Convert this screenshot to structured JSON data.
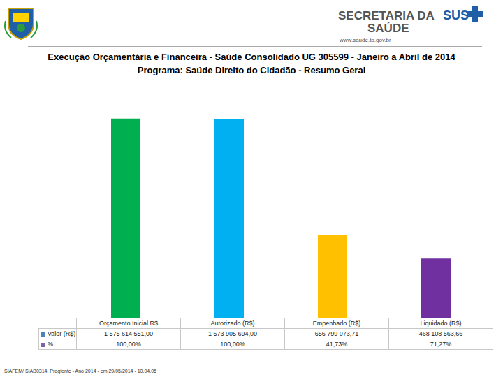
{
  "header": {
    "secretaria": [
      "SECRETARIA DA",
      "SAÚDE"
    ],
    "sus": "SUS",
    "url": "www.saude.to.gov.br"
  },
  "footer": "SIAFEM/ SIAB0314. Progfonte - Ano 2014 - em 29/05/2014 - 10.04.05",
  "chart_data": {
    "type": "bar",
    "title": "Execução Orçamentária e Financeira - Saúde Consolidado UG 305599 - Janeiro a Abril de 2014",
    "subtitle": "Programa: Saúde Direito do Cidadão - Resumo Geral",
    "categories": [
      "Orçamento Inicial R$",
      "Autorizado (R$)",
      "Empenhado (R$)",
      "Liquidado (R$)"
    ],
    "series": [
      {
        "name": "Valor (R$)",
        "values": [
          1575614551.0,
          1573905694.0,
          656799073.71,
          468108563.66
        ],
        "value_labels": [
          "1 575 614 551,00",
          "1 573 905 694,00",
          "656 799 073,71",
          "468 108 563,66"
        ],
        "colors": [
          "#00b050",
          "#00b0f0",
          "#ffc000",
          "#7030a0"
        ]
      }
    ],
    "percent": {
      "name": "%",
      "values": [
        100.0,
        100.0,
        41.73,
        71.27
      ],
      "value_labels": [
        "100,00%",
        "100,00%",
        "41,73%",
        "71,27%"
      ]
    },
    "ylim": [
      0,
      1800000000
    ],
    "yticks": [
      0,
      200000000,
      400000000,
      600000000,
      800000000,
      1000000000,
      1200000000,
      1400000000,
      1600000000,
      1800000000
    ],
    "grid": false,
    "tick_labels": false
  }
}
